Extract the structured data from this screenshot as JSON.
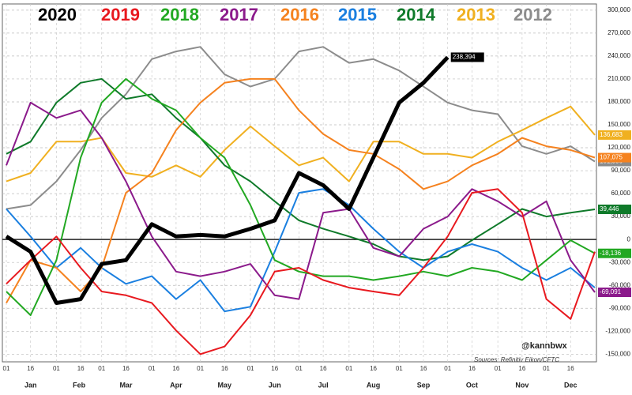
{
  "chart_data": {
    "type": "line",
    "x": [
      1,
      16,
      32,
      47,
      60,
      75,
      91,
      106,
      121,
      136,
      152,
      167,
      182,
      197,
      213,
      228,
      244,
      259,
      274,
      289,
      305,
      320,
      335,
      350,
      365
    ],
    "xlim": [
      1,
      366
    ],
    "xticks": [
      {
        "value": 1,
        "label": "01"
      },
      {
        "value": 16,
        "label": "16"
      },
      {
        "value": 32,
        "label": "01"
      },
      {
        "value": 47,
        "label": "16"
      },
      {
        "value": 60,
        "label": "01"
      },
      {
        "value": 75,
        "label": "16"
      },
      {
        "value": 91,
        "label": "01"
      },
      {
        "value": 106,
        "label": "16"
      },
      {
        "value": 121,
        "label": "01"
      },
      {
        "value": 136,
        "label": "16"
      },
      {
        "value": 152,
        "label": "01"
      },
      {
        "value": 167,
        "label": "16"
      },
      {
        "value": 182,
        "label": "01"
      },
      {
        "value": 197,
        "label": "16"
      },
      {
        "value": 213,
        "label": "01"
      },
      {
        "value": 228,
        "label": "16"
      },
      {
        "value": 244,
        "label": "01"
      },
      {
        "value": 259,
        "label": "16"
      },
      {
        "value": 274,
        "label": "01"
      },
      {
        "value": 289,
        "label": "16"
      },
      {
        "value": 305,
        "label": "01"
      },
      {
        "value": 320,
        "label": "16"
      },
      {
        "value": 335,
        "label": "01"
      },
      {
        "value": 350,
        "label": "16"
      }
    ],
    "month_labels": [
      {
        "value": 16,
        "label": "Jan"
      },
      {
        "value": 46,
        "label": "Feb"
      },
      {
        "value": 75,
        "label": "Mar"
      },
      {
        "value": 106,
        "label": "Apr"
      },
      {
        "value": 136,
        "label": "May"
      },
      {
        "value": 167,
        "label": "Jun"
      },
      {
        "value": 197,
        "label": "Jul"
      },
      {
        "value": 228,
        "label": "Aug"
      },
      {
        "value": 259,
        "label": "Sep"
      },
      {
        "value": 289,
        "label": "Oct"
      },
      {
        "value": 320,
        "label": "Nov"
      },
      {
        "value": 350,
        "label": "Dec"
      }
    ],
    "ylim": [
      -160000,
      305000
    ],
    "yticks": [
      {
        "value": -150000,
        "label": "-150,000"
      },
      {
        "value": -120000,
        "label": "-120,000"
      },
      {
        "value": -90000,
        "label": "-90,000"
      },
      {
        "value": -60000,
        "label": "-60,000"
      },
      {
        "value": -30000,
        "label": "-30,000"
      },
      0,
      {
        "value": 30000,
        "label": "30,000"
      },
      {
        "value": 60000,
        "label": "60,000"
      },
      {
        "value": 90000,
        "label": "90,000"
      },
      {
        "value": 120000,
        "label": "120,000"
      },
      {
        "value": 150000,
        "label": "150,000"
      },
      {
        "value": 180000,
        "label": "180,000"
      },
      {
        "value": 210000,
        "label": "210,000"
      },
      {
        "value": 240000,
        "label": "240,000"
      },
      {
        "value": 270000,
        "label": "270,000"
      },
      {
        "value": 300000,
        "label": "300,000"
      }
    ],
    "grid": true,
    "legend": "top",
    "annotations": [
      "@kannbwx",
      "Sources: Refinitiv Eikon/CFTC"
    ],
    "series": [
      {
        "name": "2020",
        "color": "#000000",
        "values": [
          4000,
          -16000,
          -83000,
          -78000,
          -32000,
          -27000,
          20000,
          4000,
          6000,
          4000,
          14000,
          25000,
          87000,
          71000,
          40000,
          107000,
          179000,
          205000,
          238394,
          null,
          null,
          null,
          null,
          null,
          null
        ],
        "end_label": "238,394"
      },
      {
        "name": "2019",
        "color": "#e8191f",
        "values": [
          -58000,
          -27000,
          4000,
          -37000,
          -68000,
          -73000,
          -83000,
          -119000,
          -150000,
          -140000,
          -99000,
          -42000,
          -37000,
          -53000,
          -63000,
          -68000,
          -73000,
          -37000,
          4000,
          61000,
          66000,
          35000,
          -78000,
          -104000,
          -16000
        ]
      },
      {
        "name": "2018",
        "color": "#22a822",
        "values": [
          -68000,
          -99000,
          -27000,
          107000,
          179000,
          210000,
          184000,
          169000,
          133000,
          107000,
          45000,
          -27000,
          -42000,
          -48000,
          -48000,
          -53000,
          -48000,
          -42000,
          -48000,
          -37000,
          -42000,
          -53000,
          -27000,
          -1000,
          -18136
        ],
        "end_label": "-18,136"
      },
      {
        "name": "2017",
        "color": "#8b1a8b",
        "values": [
          97000,
          179000,
          159000,
          169000,
          133000,
          76000,
          4000,
          -42000,
          -48000,
          -42000,
          -32000,
          -73000,
          -78000,
          35000,
          40000,
          -11000,
          -22000,
          14000,
          30000,
          66000,
          50000,
          30000,
          50000,
          -27000,
          -69091
        ],
        "end_label": "-69,091"
      },
      {
        "name": "2016",
        "color": "#f5821f",
        "values": [
          -83000,
          -27000,
          -37000,
          -68000,
          -37000,
          61000,
          87000,
          143000,
          179000,
          205000,
          210000,
          210000,
          169000,
          138000,
          117000,
          112000,
          92000,
          66000,
          76000,
          97000,
          112000,
          133000,
          122000,
          117000,
          107075
        ],
        "end_label": "107,075"
      },
      {
        "name": "2015",
        "color": "#1a7fe0",
        "values": [
          40000,
          4000,
          -37000,
          -11000,
          -37000,
          -58000,
          -48000,
          -78000,
          -53000,
          -94000,
          -88000,
          -16000,
          61000,
          66000,
          45000,
          14000,
          -16000,
          -37000,
          -16000,
          -6000,
          -16000,
          -37000,
          -53000,
          -37000,
          -63000
        ]
      },
      {
        "name": "2014",
        "color": "#0f7a2a",
        "values": [
          112000,
          128000,
          179000,
          205000,
          210000,
          184000,
          190000,
          159000,
          133000,
          97000,
          76000,
          50000,
          25000,
          14000,
          4000,
          -6000,
          -22000,
          -27000,
          -22000,
          -1000,
          20000,
          40000,
          30000,
          35000,
          39446
        ],
        "end_label": "39,446"
      },
      {
        "name": "2013",
        "color": "#f0b020",
        "values": [
          76000,
          87000,
          128000,
          128000,
          133000,
          87000,
          82000,
          97000,
          82000,
          117000,
          148000,
          122000,
          97000,
          107000,
          76000,
          128000,
          128000,
          112000,
          112000,
          107000,
          128000,
          143000,
          159000,
          174000,
          136683
        ],
        "end_label": "136,683"
      },
      {
        "name": "2012",
        "color": "#8c8c8c",
        "values": [
          40000,
          45000,
          76000,
          117000,
          159000,
          190000,
          236000,
          246000,
          252000,
          216000,
          200000,
          210000,
          246000,
          252000,
          231000,
          236000,
          221000,
          200000,
          179000,
          169000,
          164000,
          122000,
          112000,
          122000,
          101956
        ],
        "end_label": "101,956"
      }
    ]
  }
}
